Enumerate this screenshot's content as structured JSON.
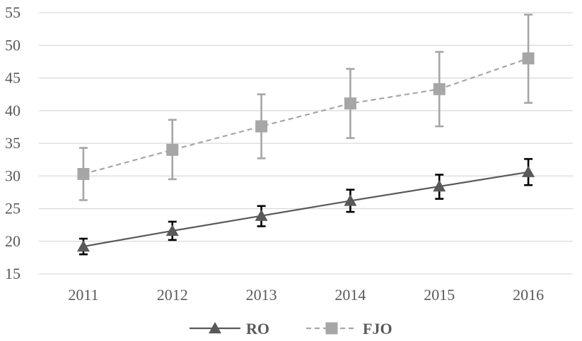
{
  "chart_data": {
    "type": "line",
    "title": "",
    "xlabel": "",
    "ylabel": "",
    "categories": [
      "2011",
      "2012",
      "2013",
      "2014",
      "2015",
      "2016"
    ],
    "ylim": [
      15,
      55
    ],
    "yticks": [
      15,
      20,
      25,
      30,
      35,
      40,
      45,
      50,
      55
    ],
    "grid": true,
    "legend_position": "bottom",
    "series": [
      {
        "name": "RO",
        "values": [
          19.2,
          21.6,
          23.9,
          26.2,
          28.4,
          30.6
        ],
        "error_low": [
          18.0,
          20.2,
          22.3,
          24.5,
          26.5,
          28.6
        ],
        "error_high": [
          20.4,
          23.0,
          25.4,
          27.9,
          30.2,
          32.6
        ],
        "line_style": "solid",
        "marker": "triangle",
        "color": "#595959",
        "error_color": "#000000"
      },
      {
        "name": "FJO",
        "values": [
          30.3,
          34.0,
          37.6,
          41.1,
          43.3,
          48.0
        ],
        "error_low": [
          26.3,
          29.5,
          32.7,
          35.8,
          37.6,
          41.2
        ],
        "error_high": [
          34.3,
          38.6,
          42.5,
          46.4,
          49.0,
          54.7
        ],
        "line_style": "dashed",
        "marker": "square",
        "color": "#a6a6a6",
        "error_color": "#a6a6a6"
      }
    ],
    "gridline_color": "#d9d9d9"
  }
}
